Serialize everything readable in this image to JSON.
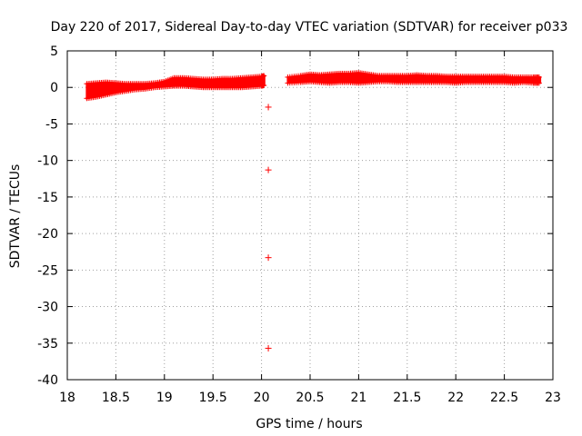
{
  "chart_data": {
    "type": "scatter",
    "title": "Day 220 of 2017, Sidereal Day-to-day VTEC variation (SDTVAR) for receiver p033",
    "xlabel": "GPS time / hours",
    "ylabel": "SDTVAR / TECUs",
    "xlim": [
      18,
      23
    ],
    "ylim": [
      -40,
      5
    ],
    "x_ticks": [
      "18",
      "18.5",
      "19",
      "19.5",
      "20",
      "20.5",
      "21",
      "21.5",
      "22",
      "22.5",
      "23"
    ],
    "y_ticks": [
      "5",
      "0",
      "-5",
      "-10",
      "-15",
      "-20",
      "-25",
      "-30",
      "-35",
      "-40"
    ],
    "grid": true,
    "marker": "+",
    "color": "#ff0000",
    "series": [
      {
        "dense_band_segments": [
          {
            "x": [
              18.2,
              18.3,
              18.4,
              18.5,
              18.6,
              18.7,
              18.8,
              18.9,
              19.0,
              19.1,
              19.2,
              19.3,
              19.4,
              19.5,
              19.6,
              19.7,
              19.8,
              19.9,
              20.0,
              20.03
            ],
            "y_low": [
              -1.5,
              -1.3,
              -1.0,
              -0.7,
              -0.5,
              -0.3,
              -0.2,
              0.0,
              0.1,
              0.2,
              0.2,
              0.1,
              0.0,
              0.0,
              0.0,
              0.0,
              0.0,
              0.1,
              0.2,
              0.3
            ],
            "y_high": [
              0.5,
              0.6,
              0.7,
              0.6,
              0.5,
              0.5,
              0.5,
              0.6,
              0.8,
              1.3,
              1.3,
              1.2,
              1.1,
              1.1,
              1.2,
              1.2,
              1.3,
              1.4,
              1.5,
              1.6
            ]
          },
          {
            "x": [
              20.27,
              20.4,
              20.5,
              20.6,
              20.7,
              20.8,
              20.9,
              21.0,
              21.1,
              21.2,
              21.3,
              21.4,
              21.5,
              21.6,
              21.7,
              21.8,
              21.9,
              22.0,
              22.1,
              22.2,
              22.3,
              22.4,
              22.5,
              22.6,
              22.7,
              22.8,
              22.87
            ],
            "y_low": [
              0.6,
              0.7,
              0.8,
              0.7,
              0.6,
              0.7,
              0.7,
              0.6,
              0.7,
              0.8,
              0.8,
              0.7,
              0.7,
              0.7,
              0.7,
              0.7,
              0.7,
              0.6,
              0.7,
              0.7,
              0.7,
              0.7,
              0.7,
              0.6,
              0.7,
              0.6,
              0.6
            ],
            "y_high": [
              1.4,
              1.6,
              1.8,
              1.7,
              1.8,
              1.9,
              1.9,
              2.0,
              1.8,
              1.6,
              1.6,
              1.6,
              1.6,
              1.7,
              1.6,
              1.6,
              1.5,
              1.5,
              1.5,
              1.5,
              1.5,
              1.5,
              1.5,
              1.4,
              1.4,
              1.4,
              1.4
            ]
          }
        ],
        "outliers": [
          {
            "x": 20.07,
            "y": -2.7
          },
          {
            "x": 20.07,
            "y": -11.3
          },
          {
            "x": 20.07,
            "y": -23.3
          },
          {
            "x": 20.07,
            "y": -35.7
          }
        ]
      }
    ]
  }
}
